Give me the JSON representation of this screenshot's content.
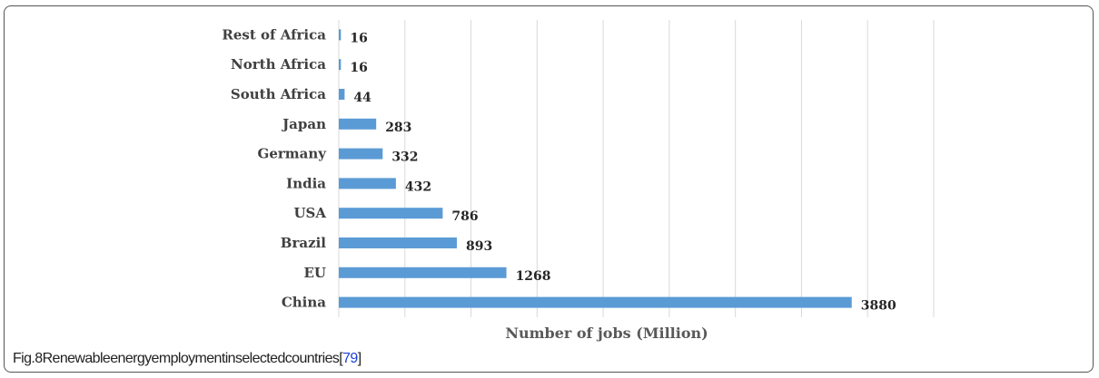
{
  "caption": {
    "text": "Fig.8Renewableenergyemploymentinselectedcountries[",
    "ref": "79",
    "close": "]"
  },
  "chart_data": {
    "type": "bar",
    "orientation": "horizontal",
    "categories": [
      "Rest of Africa",
      "North Africa",
      "South Africa",
      "Japan",
      "Germany",
      "India",
      "USA",
      "Brazil",
      "EU",
      "China"
    ],
    "values": [
      16,
      16,
      44,
      283,
      332,
      432,
      786,
      893,
      1268,
      3880
    ],
    "xlabel": "Number of jobs (Million)",
    "xlim": [
      0,
      4500
    ],
    "grid": true,
    "bar_color": "#5B9BD5",
    "grid_color": "#D9D9D9"
  }
}
